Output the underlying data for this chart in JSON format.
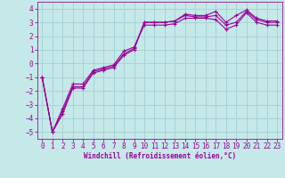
{
  "xlabel": "Windchill (Refroidissement éolien,°C)",
  "bg_color": "#c5e8e8",
  "grid_color": "#a8d4d4",
  "line_color": "#990099",
  "spine_color": "#993399",
  "xlim": [
    -0.5,
    23.5
  ],
  "ylim": [
    -5.5,
    4.5
  ],
  "xticks": [
    0,
    1,
    2,
    3,
    4,
    5,
    6,
    7,
    8,
    9,
    10,
    11,
    12,
    13,
    14,
    15,
    16,
    17,
    18,
    19,
    20,
    21,
    22,
    23
  ],
  "yticks": [
    -5,
    -4,
    -3,
    -2,
    -1,
    0,
    1,
    2,
    3,
    4
  ],
  "series_x": [
    0,
    1,
    2,
    3,
    4,
    5,
    6,
    7,
    8,
    9,
    10,
    11,
    12,
    13,
    14,
    15,
    16,
    17,
    18,
    19,
    20,
    21,
    22,
    23
  ],
  "series": [
    [
      -1.0,
      -5.0,
      -3.7,
      -1.8,
      -1.8,
      -0.7,
      -0.5,
      -0.3,
      0.6,
      1.0,
      3.0,
      3.0,
      3.0,
      3.1,
      3.6,
      3.5,
      3.5,
      3.8,
      3.0,
      3.5,
      3.9,
      3.3,
      3.1,
      3.1
    ],
    [
      -1.0,
      -5.0,
      -3.5,
      -1.7,
      -1.7,
      -0.6,
      -0.4,
      -0.2,
      0.7,
      1.1,
      3.0,
      3.0,
      3.0,
      3.1,
      3.5,
      3.4,
      3.4,
      3.5,
      2.8,
      3.0,
      3.8,
      3.2,
      3.0,
      3.0
    ],
    [
      -1.0,
      -5.0,
      -3.3,
      -1.5,
      -1.5,
      -0.5,
      -0.3,
      -0.1,
      0.9,
      1.2,
      2.8,
      2.8,
      2.8,
      2.9,
      3.3,
      3.3,
      3.3,
      3.2,
      2.5,
      2.8,
      3.7,
      3.0,
      2.8,
      2.8
    ]
  ],
  "tick_fontsize": 5.5,
  "label_fontsize": 5.5
}
